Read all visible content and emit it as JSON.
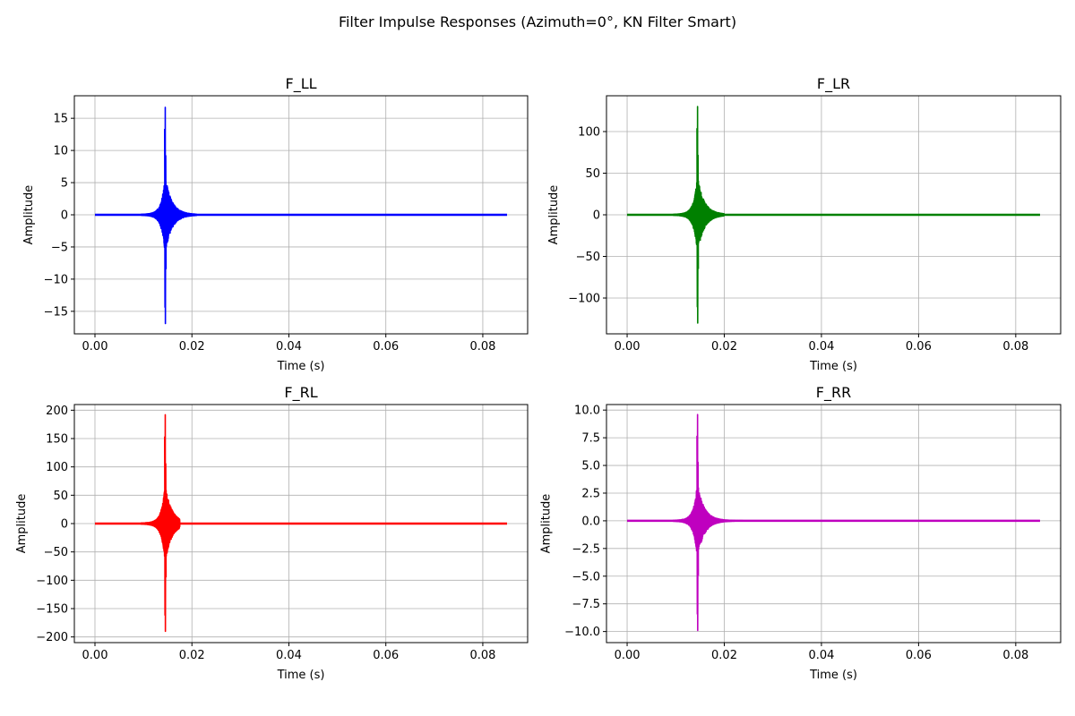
{
  "figure": {
    "suptitle": "Filter Impulse Responses (Azimuth=0°, KN Filter Smart)"
  },
  "chart_data": [
    {
      "type": "line",
      "title": "F_LL",
      "xlabel": "Time (s)",
      "ylabel": "Amplitude",
      "color": "#0000ff",
      "xlim": [
        -0.00425,
        0.08925
      ],
      "ylim": [
        -18.5,
        18.5
      ],
      "xticks": [
        0.0,
        0.02,
        0.04,
        0.06,
        0.08
      ],
      "xtick_labels": [
        "0.00",
        "0.02",
        "0.04",
        "0.06",
        "0.08"
      ],
      "yticks": [
        -15,
        -10,
        -5,
        0,
        5,
        10,
        15
      ],
      "ytick_labels": [
        "−15",
        "−10",
        "−5",
        "0",
        "5",
        "10",
        "15"
      ],
      "grid": true,
      "x_end": 0.085,
      "peak_time": 0.0145,
      "peak_max": 16.7,
      "peak_min": -16.9,
      "decay_end": 0.021
    },
    {
      "type": "line",
      "title": "F_LR",
      "xlabel": "Time (s)",
      "ylabel": "Amplitude",
      "color": "#008000",
      "xlim": [
        -0.00425,
        0.08925
      ],
      "ylim": [
        -143,
        143
      ],
      "xticks": [
        0.0,
        0.02,
        0.04,
        0.06,
        0.08
      ],
      "xtick_labels": [
        "0.00",
        "0.02",
        "0.04",
        "0.06",
        "0.08"
      ],
      "yticks": [
        -100,
        -50,
        0,
        50,
        100
      ],
      "ytick_labels": [
        "−100",
        "−50",
        "0",
        "50",
        "100"
      ],
      "grid": true,
      "x_end": 0.085,
      "peak_time": 0.0145,
      "peak_max": 130,
      "peak_min": -130,
      "decay_end": 0.02
    },
    {
      "type": "line",
      "title": "F_RL",
      "xlabel": "Time (s)",
      "ylabel": "Amplitude",
      "color": "#ff0000",
      "xlim": [
        -0.00425,
        0.08925
      ],
      "ylim": [
        -210,
        210
      ],
      "xticks": [
        0.0,
        0.02,
        0.04,
        0.06,
        0.08
      ],
      "xtick_labels": [
        "0.00",
        "0.02",
        "0.04",
        "0.06",
        "0.08"
      ],
      "yticks": [
        -200,
        -150,
        -100,
        -50,
        0,
        50,
        100,
        150,
        200
      ],
      "ytick_labels": [
        "−200",
        "−150",
        "−100",
        "−50",
        "0",
        "50",
        "100",
        "150",
        "200"
      ],
      "grid": true,
      "x_end": 0.085,
      "peak_time": 0.0145,
      "peak_max": 192,
      "peak_min": -190,
      "decay_end": 0.0175
    },
    {
      "type": "line",
      "title": "F_RR",
      "xlabel": "Time (s)",
      "ylabel": "Amplitude",
      "color": "#bf00bf",
      "xlim": [
        -0.00425,
        0.08925
      ],
      "ylim": [
        -11,
        10.5
      ],
      "xticks": [
        0.0,
        0.02,
        0.04,
        0.06,
        0.08
      ],
      "xtick_labels": [
        "0.00",
        "0.02",
        "0.04",
        "0.06",
        "0.08"
      ],
      "yticks": [
        -10.0,
        -7.5,
        -5.0,
        -2.5,
        0.0,
        2.5,
        5.0,
        7.5,
        10.0
      ],
      "ytick_labels": [
        "−10.0",
        "−7.5",
        "−5.0",
        "−2.5",
        "0.0",
        "2.5",
        "5.0",
        "7.5",
        "10.0"
      ],
      "grid": true,
      "x_end": 0.085,
      "peak_time": 0.0145,
      "peak_max": 9.6,
      "peak_min": -9.9,
      "decay_end": 0.024
    }
  ]
}
